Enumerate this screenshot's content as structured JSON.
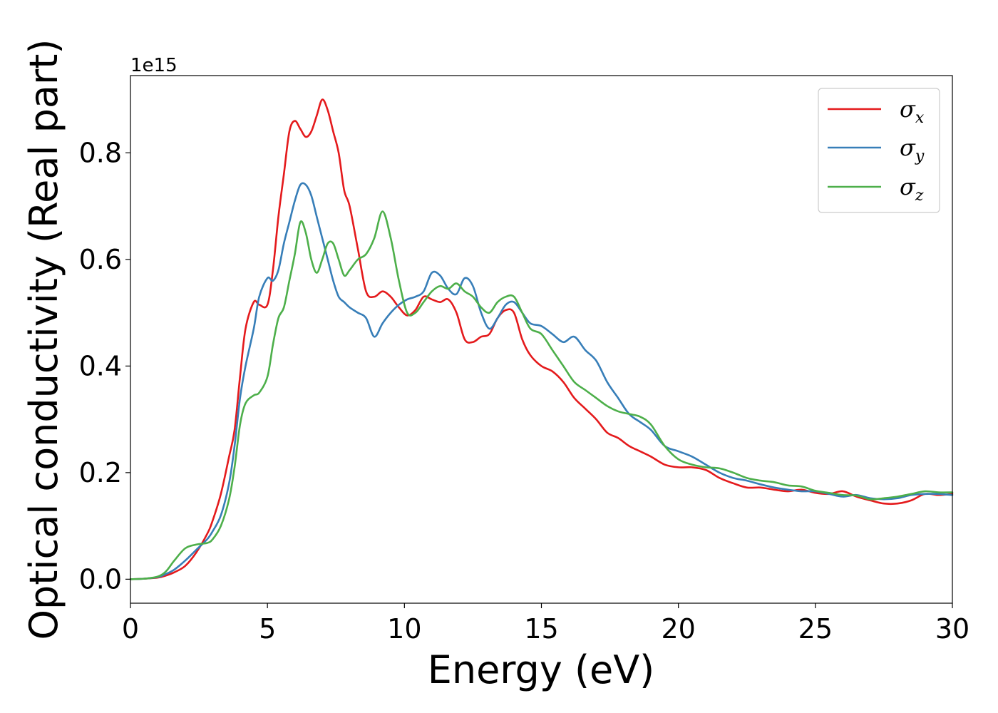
{
  "chart_data": {
    "type": "line",
    "title": "",
    "xlabel": "Energy (eV)",
    "ylabel": "Optical conductivity (Real part)",
    "y_exponent_label": "1e15",
    "y_scale_factor": 1000000000000000.0,
    "xlim": [
      0,
      30
    ],
    "ylim": [
      -0.045,
      0.945
    ],
    "x_ticks": [
      0,
      5,
      10,
      15,
      20,
      25,
      30
    ],
    "x_tick_labels": [
      "0",
      "5",
      "10",
      "15",
      "20",
      "25",
      "30"
    ],
    "y_ticks": [
      0.0,
      0.2,
      0.4,
      0.6,
      0.8
    ],
    "y_tick_labels": [
      "0.0",
      "0.2",
      "0.4",
      "0.6",
      "0.8"
    ],
    "grid": false,
    "legend_position": "top-right",
    "series": [
      {
        "name": "σx",
        "legend_symbol": "σ",
        "legend_subscript": "x",
        "color": "#e41a1c",
        "x": [
          0,
          0.5,
          1.0,
          1.3,
          1.6,
          2.0,
          2.4,
          2.8,
          3.0,
          3.3,
          3.6,
          3.8,
          4.0,
          4.2,
          4.5,
          4.7,
          5.0,
          5.2,
          5.4,
          5.6,
          5.8,
          6.0,
          6.2,
          6.4,
          6.6,
          6.8,
          7.0,
          7.2,
          7.4,
          7.6,
          7.8,
          8.0,
          8.3,
          8.6,
          8.9,
          9.2,
          9.5,
          9.8,
          10.1,
          10.4,
          10.7,
          11.0,
          11.3,
          11.6,
          11.9,
          12.2,
          12.5,
          12.8,
          13.1,
          13.4,
          13.7,
          14.0,
          14.3,
          14.6,
          15.0,
          15.4,
          15.8,
          16.2,
          16.6,
          17.0,
          17.4,
          17.8,
          18.2,
          18.6,
          19.0,
          19.5,
          20.0,
          20.5,
          21.0,
          21.5,
          22.0,
          22.5,
          23.0,
          23.5,
          24.0,
          24.5,
          25.0,
          25.5,
          26.0,
          26.5,
          27.0,
          27.5,
          28.0,
          28.5,
          29.0,
          29.5,
          30.0
        ],
        "y": [
          0.0,
          0.001,
          0.003,
          0.007,
          0.013,
          0.025,
          0.05,
          0.085,
          0.11,
          0.16,
          0.23,
          0.28,
          0.38,
          0.47,
          0.52,
          0.515,
          0.515,
          0.58,
          0.68,
          0.76,
          0.84,
          0.86,
          0.845,
          0.83,
          0.84,
          0.87,
          0.9,
          0.88,
          0.84,
          0.8,
          0.73,
          0.7,
          0.62,
          0.54,
          0.53,
          0.54,
          0.53,
          0.51,
          0.495,
          0.505,
          0.53,
          0.525,
          0.52,
          0.525,
          0.5,
          0.45,
          0.445,
          0.455,
          0.46,
          0.49,
          0.505,
          0.5,
          0.45,
          0.42,
          0.4,
          0.39,
          0.37,
          0.34,
          0.32,
          0.3,
          0.275,
          0.265,
          0.25,
          0.24,
          0.23,
          0.215,
          0.21,
          0.21,
          0.205,
          0.19,
          0.18,
          0.172,
          0.172,
          0.168,
          0.165,
          0.168,
          0.162,
          0.16,
          0.165,
          0.155,
          0.148,
          0.142,
          0.142,
          0.148,
          0.16,
          0.158,
          0.16
        ]
      },
      {
        "name": "σy",
        "legend_symbol": "σ",
        "legend_subscript": "y",
        "color": "#377eb8",
        "x": [
          0,
          0.5,
          1.0,
          1.3,
          1.6,
          2.0,
          2.4,
          2.8,
          3.0,
          3.3,
          3.6,
          3.8,
          4.0,
          4.2,
          4.5,
          4.7,
          5.0,
          5.2,
          5.4,
          5.6,
          5.8,
          6.0,
          6.2,
          6.4,
          6.6,
          6.8,
          7.0,
          7.2,
          7.4,
          7.6,
          7.8,
          8.0,
          8.3,
          8.6,
          8.9,
          9.2,
          9.5,
          9.8,
          10.1,
          10.4,
          10.7,
          11.0,
          11.3,
          11.6,
          11.9,
          12.2,
          12.5,
          12.8,
          13.1,
          13.4,
          13.7,
          14.0,
          14.3,
          14.6,
          15.0,
          15.4,
          15.8,
          16.2,
          16.6,
          17.0,
          17.4,
          17.8,
          18.2,
          18.6,
          19.0,
          19.5,
          20.0,
          20.5,
          21.0,
          21.5,
          22.0,
          22.5,
          23.0,
          23.5,
          24.0,
          24.5,
          25.0,
          25.5,
          26.0,
          26.5,
          27.0,
          27.5,
          28.0,
          28.5,
          29.0,
          29.5,
          30.0
        ],
        "y": [
          0.0,
          0.001,
          0.004,
          0.01,
          0.018,
          0.035,
          0.055,
          0.075,
          0.09,
          0.12,
          0.18,
          0.25,
          0.34,
          0.4,
          0.47,
          0.53,
          0.565,
          0.56,
          0.58,
          0.63,
          0.67,
          0.71,
          0.74,
          0.74,
          0.72,
          0.68,
          0.64,
          0.6,
          0.56,
          0.53,
          0.52,
          0.51,
          0.5,
          0.49,
          0.455,
          0.48,
          0.5,
          0.515,
          0.525,
          0.53,
          0.54,
          0.575,
          0.57,
          0.545,
          0.535,
          0.565,
          0.55,
          0.5,
          0.47,
          0.49,
          0.515,
          0.52,
          0.5,
          0.48,
          0.475,
          0.46,
          0.445,
          0.455,
          0.43,
          0.41,
          0.37,
          0.34,
          0.31,
          0.295,
          0.28,
          0.25,
          0.24,
          0.23,
          0.215,
          0.2,
          0.19,
          0.185,
          0.178,
          0.172,
          0.168,
          0.165,
          0.165,
          0.16,
          0.155,
          0.158,
          0.152,
          0.15,
          0.152,
          0.158,
          0.16,
          0.16,
          0.158
        ]
      },
      {
        "name": "σz",
        "legend_symbol": "σ",
        "legend_subscript": "z",
        "color": "#4daf4a",
        "x": [
          0,
          0.5,
          1.0,
          1.3,
          1.6,
          2.0,
          2.4,
          2.8,
          3.0,
          3.3,
          3.6,
          3.8,
          4.0,
          4.2,
          4.5,
          4.7,
          5.0,
          5.2,
          5.4,
          5.6,
          5.8,
          6.0,
          6.2,
          6.4,
          6.6,
          6.8,
          7.0,
          7.2,
          7.4,
          7.6,
          7.8,
          8.0,
          8.3,
          8.6,
          8.9,
          9.2,
          9.5,
          9.8,
          10.1,
          10.4,
          10.7,
          11.0,
          11.3,
          11.6,
          11.9,
          12.2,
          12.5,
          12.8,
          13.1,
          13.4,
          13.7,
          14.0,
          14.3,
          14.6,
          15.0,
          15.4,
          15.8,
          16.2,
          16.6,
          17.0,
          17.4,
          17.8,
          18.2,
          18.6,
          19.0,
          19.5,
          20.0,
          20.5,
          21.0,
          21.5,
          22.0,
          22.5,
          23.0,
          23.5,
          24.0,
          24.5,
          25.0,
          25.5,
          26.0,
          26.5,
          27.0,
          27.5,
          28.0,
          28.5,
          29.0,
          29.5,
          30.0
        ],
        "y": [
          0.0,
          0.001,
          0.005,
          0.015,
          0.035,
          0.058,
          0.065,
          0.068,
          0.075,
          0.1,
          0.15,
          0.21,
          0.29,
          0.33,
          0.345,
          0.35,
          0.38,
          0.44,
          0.49,
          0.51,
          0.56,
          0.61,
          0.67,
          0.65,
          0.6,
          0.575,
          0.6,
          0.63,
          0.63,
          0.6,
          0.57,
          0.58,
          0.6,
          0.61,
          0.64,
          0.69,
          0.64,
          0.56,
          0.5,
          0.5,
          0.52,
          0.54,
          0.55,
          0.545,
          0.555,
          0.54,
          0.53,
          0.51,
          0.5,
          0.52,
          0.53,
          0.53,
          0.5,
          0.47,
          0.46,
          0.43,
          0.4,
          0.37,
          0.355,
          0.34,
          0.325,
          0.315,
          0.31,
          0.305,
          0.29,
          0.25,
          0.225,
          0.215,
          0.21,
          0.208,
          0.2,
          0.19,
          0.185,
          0.182,
          0.176,
          0.174,
          0.166,
          0.162,
          0.158,
          0.157,
          0.15,
          0.152,
          0.155,
          0.16,
          0.165,
          0.163,
          0.163
        ]
      }
    ]
  }
}
